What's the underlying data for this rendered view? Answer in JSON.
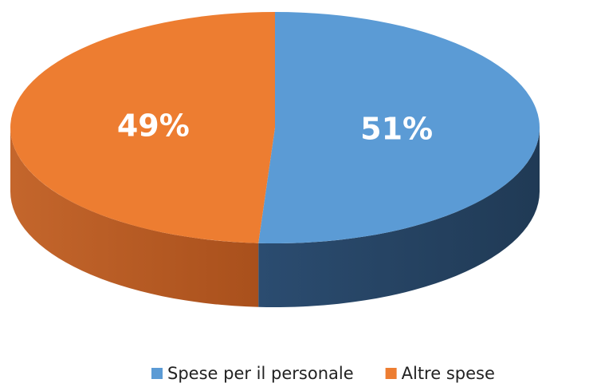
{
  "chart_data": {
    "type": "pie3d",
    "categories": [
      "Spese per il personale",
      "Altre spese"
    ],
    "values": [
      51,
      49
    ],
    "value_labels": [
      "51%",
      "49%"
    ],
    "colors": [
      "#5b9bd5",
      "#ed7d31"
    ],
    "legend": "bottom"
  }
}
